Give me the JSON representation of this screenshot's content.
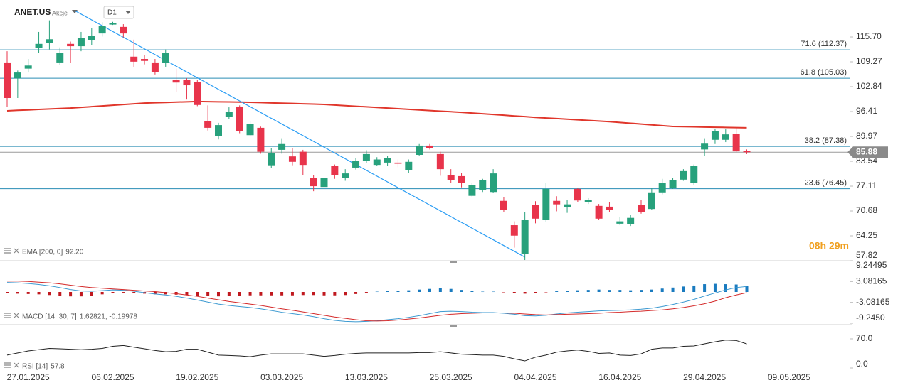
{
  "header": {
    "symbol": "ANET.US",
    "asset_class": "Akcje",
    "timeframe": "D1"
  },
  "chart_data": [
    {
      "type": "candlestick",
      "categories": [
        null,
        null,
        "27.01.2025",
        null,
        null,
        null,
        null,
        null,
        null,
        null,
        "06.02.2025",
        null,
        null,
        null,
        null,
        null,
        null,
        null,
        "19.02.2025",
        null,
        null,
        null,
        null,
        null,
        null,
        null,
        "03.03.2025",
        null,
        null,
        null,
        null,
        null,
        null,
        null,
        "13.03.2025",
        null,
        null,
        null,
        null,
        null,
        null,
        null,
        "25.03.2025",
        null,
        null,
        null,
        null,
        null,
        null,
        null,
        "04.04.2025",
        null,
        null,
        null,
        null,
        null,
        null,
        null,
        "16.04.2025",
        null,
        null,
        null,
        null,
        null,
        null,
        null,
        "29.04.2025",
        null,
        null,
        null,
        null,
        null,
        null,
        null,
        "09.05.2025"
      ],
      "open": [
        109.1,
        105,
        107.5,
        112.9,
        114.2,
        109.1,
        113.9,
        113.3,
        114.8,
        116.6,
        118.9,
        118.3,
        110.6,
        110,
        109.1,
        109,
        104.5,
        104.5,
        104.1,
        94,
        90,
        95.1,
        97.7,
        90.3,
        92.2,
        82.5,
        86.5,
        84.8,
        86,
        79.3,
        76.9,
        82.3,
        79.3,
        81.9,
        83.7,
        82.6,
        83.2,
        83.2,
        81.2,
        85.2,
        87.6,
        85.4,
        80,
        79.7,
        74.6,
        76.2,
        75.6,
        73.3,
        67,
        59.5,
        72.3,
        68.3,
        73.3,
        71.6,
        76.4,
        72.9,
        72,
        71.8,
        67.4,
        67.2,
        72.3,
        71.2,
        75.5,
        76.7,
        78.8,
        77.9,
        86.6,
        89.1,
        89.1,
        90.7,
        86.3,
        null,
        null,
        null,
        null
      ],
      "high": [
        112,
        107,
        110,
        117,
        120,
        113,
        114.5,
        117,
        118,
        119.5,
        119.6,
        119,
        115,
        111,
        110,
        112.5,
        107.5,
        105,
        104.5,
        98,
        93.5,
        97.5,
        98,
        94,
        92.5,
        87,
        89.5,
        87,
        86.5,
        80,
        80.5,
        82.7,
        81.5,
        84.3,
        86.4,
        84.6,
        85,
        84,
        84,
        88,
        88,
        86,
        81.5,
        80.5,
        78,
        79,
        81.5,
        74.3,
        68,
        70.5,
        73.2,
        78,
        74.5,
        73.5,
        76.6,
        74,
        72.5,
        73,
        69.2,
        69.6,
        73.5,
        76.6,
        79,
        79.2,
        81.5,
        82.7,
        89.5,
        92,
        91.8,
        92.3,
        86.6,
        null,
        null,
        null,
        null
      ],
      "low": [
        97.7,
        99.9,
        106.5,
        111.5,
        112.5,
        108.5,
        109,
        112,
        113.5,
        115.8,
        118.8,
        115.6,
        108,
        108.6,
        106,
        108,
        101.5,
        99.5,
        97.8,
        91.5,
        89.2,
        94.5,
        90.8,
        90,
        85.5,
        81.8,
        85.5,
        82.5,
        80,
        75.8,
        76.5,
        79,
        78.5,
        81.4,
        83,
        82.3,
        82.4,
        82,
        80.5,
        85,
        86.6,
        79.8,
        78,
        76.8,
        74.4,
        75.6,
        75.3,
        70.5,
        61.2,
        58,
        67.5,
        67.9,
        70.6,
        70.2,
        73,
        72.5,
        68.4,
        70.5,
        67,
        66.8,
        70,
        71,
        75,
        76.4,
        78.5,
        77.5,
        85,
        88,
        88.5,
        85.9,
        85.4,
        null,
        null,
        null,
        null
      ],
      "close": [
        99.9,
        106.5,
        108.3,
        113.9,
        115.1,
        111.5,
        113.3,
        115.5,
        116,
        118.5,
        119.3,
        116.6,
        109.3,
        109.5,
        106.7,
        111.5,
        103.9,
        103.2,
        98.1,
        92.2,
        92.9,
        96.4,
        91.3,
        93.1,
        86,
        85.6,
        88,
        83.4,
        82.6,
        77.1,
        79.3,
        79.9,
        80.4,
        83.7,
        85.4,
        84,
        84.3,
        82.9,
        83.4,
        87.6,
        87,
        81.5,
        78.6,
        78,
        77.3,
        78.6,
        80.4,
        70.9,
        64.3,
        68.3,
        68.7,
        76.4,
        72.4,
        72.4,
        73.4,
        73.5,
        68.7,
        70.9,
        68,
        68.9,
        70.5,
        75.5,
        78,
        78.6,
        81,
        82.3,
        88.1,
        91.3,
        90.5,
        86.1,
        85.88,
        null,
        null,
        null,
        null
      ],
      "up_color": "#27a17c",
      "down_color": "#e8344b",
      "ylim": [
        57.82,
        124.34
      ],
      "yticks": [
        {
          "value": 115.7,
          "label": "115.70"
        },
        109.27,
        102.84,
        96.41,
        89.97,
        83.54,
        77.11,
        70.68,
        64.25,
        57.82
      ],
      "overlays": [
        {
          "legend": "EMA [200, 0]",
          "legend_value": "92.20",
          "color": "#e0362b",
          "values": [
            96.6,
            96.72,
            96.83,
            96.95,
            97.07,
            97.18,
            97.3,
            97.49,
            97.67,
            97.86,
            98.04,
            98.23,
            98.41,
            98.6,
            98.68,
            98.76,
            98.84,
            98.92,
            99.0,
            98.96,
            98.92,
            98.88,
            98.84,
            98.8,
            98.72,
            98.64,
            98.56,
            98.49,
            98.41,
            98.33,
            98.25,
            98.09,
            97.93,
            97.77,
            97.62,
            97.46,
            97.3,
            97.14,
            96.99,
            96.83,
            96.67,
            96.51,
            96.36,
            96.2,
            96.01,
            95.83,
            95.64,
            95.46,
            95.27,
            95.09,
            94.9,
            94.74,
            94.59,
            94.43,
            94.27,
            94.11,
            93.96,
            93.8,
            93.59,
            93.38,
            93.18,
            92.97,
            92.76,
            92.55,
            92.5,
            92.45,
            92.4,
            92.35,
            92.3,
            92.25,
            92.2,
            null,
            null,
            null,
            null
          ]
        }
      ],
      "levels": [
        {
          "label": "71.6 (112.37)",
          "value": 112.37
        },
        {
          "label": "61.8 (105.03)",
          "value": 105.03
        },
        {
          "label": "38.2 (87.38)",
          "value": 87.38
        },
        {
          "label": "23.6 (76.45)",
          "value": 76.45
        }
      ],
      "level_color": "#1b8ed8",
      "current_price": 85.88,
      "trendline": {
        "x": [
          6.4,
          49.0
        ],
        "values": [
          122.5,
          58.75
        ],
        "color": "#2a9df4"
      },
      "countdown": "08h 29m"
    },
    {
      "type": "macd",
      "legend": "MACD [14, 30, 7]",
      "legend_value": "1.62821, -0.19978",
      "ylim": [
        -9.245,
        9.24495
      ],
      "yticks": [
        9.24495,
        3.08165,
        -3.08165,
        {
          "value": -9.245,
          "label": "-9.2450"
        }
      ],
      "series": [
        {
          "color": "#3d9ad1",
          "values": [
            2.8,
            2.7,
            2.5,
            2.2,
            1.8,
            1.3,
            0.7,
            0.3,
            0.2,
            0.4,
            0.6,
            0.5,
            0.2,
            -0.2,
            -0.6,
            -0.9,
            -1.3,
            -1.8,
            -2.4,
            -3.0,
            -3.6,
            -4.0,
            -4.3,
            -4.6,
            -5.0,
            -5.5,
            -6.0,
            -6.4,
            -6.8,
            -7.3,
            -7.9,
            -8.4,
            -8.7,
            -8.8,
            -8.7,
            -8.5,
            -8.2,
            -7.9,
            -7.5,
            -7.0,
            -6.4,
            -5.8,
            -5.7,
            -5.8,
            -6.0,
            -6.1,
            -6.1,
            -6.3,
            -6.6,
            -7.0,
            -7.1,
            -6.9,
            -6.5,
            -6.2,
            -6.0,
            -5.8,
            -5.6,
            -5.5,
            -5.4,
            -5.3,
            -5.1,
            -4.8,
            -4.3,
            -3.7,
            -3.0,
            -2.2,
            -1.2,
            -0.3,
            0.6,
            1.3,
            1.63,
            null,
            null,
            null,
            null
          ]
        },
        {
          "color": "#d42a2a",
          "values": [
            3.2,
            3.2,
            3.1,
            2.9,
            2.7,
            2.4,
            2.0,
            1.6,
            1.3,
            1.1,
            0.9,
            0.7,
            0.5,
            0.3,
            0.1,
            -0.2,
            -0.5,
            -0.9,
            -1.3,
            -1.8,
            -2.3,
            -2.8,
            -3.2,
            -3.6,
            -4.0,
            -4.5,
            -5.0,
            -5.4,
            -5.9,
            -6.4,
            -6.9,
            -7.4,
            -7.8,
            -8.2,
            -8.5,
            -8.6,
            -8.5,
            -8.3,
            -8.0,
            -7.7,
            -7.3,
            -6.9,
            -6.6,
            -6.4,
            -6.3,
            -6.2,
            -6.2,
            -6.2,
            -6.3,
            -6.5,
            -6.7,
            -6.8,
            -6.7,
            -6.6,
            -6.5,
            -6.4,
            -6.3,
            -6.1,
            -6.0,
            -5.8,
            -5.7,
            -5.5,
            -5.3,
            -5.0,
            -4.6,
            -4.1,
            -3.5,
            -2.7,
            -1.7,
            -0.9,
            -0.2,
            null,
            null,
            null,
            null
          ]
        }
      ],
      "histogram": {
        "up_color": "#1a7bbf",
        "down_color": "#c0191f",
        "values": [
          -0.4,
          -0.5,
          -0.6,
          -0.7,
          -0.9,
          -1.1,
          -1.3,
          -1.3,
          -1.1,
          -0.7,
          -0.3,
          -0.2,
          -0.3,
          -0.5,
          -0.7,
          -0.7,
          -0.8,
          -0.9,
          -1.1,
          -1.2,
          -1.3,
          -1.2,
          -1.1,
          -1.0,
          -1.0,
          -1.0,
          -1.0,
          -1.0,
          -0.9,
          -0.9,
          -1.0,
          -1.0,
          -0.9,
          -0.6,
          -0.2,
          0.1,
          0.3,
          0.4,
          0.5,
          0.7,
          0.9,
          1.1,
          0.9,
          0.6,
          0.3,
          0.1,
          0.1,
          -0.1,
          -0.3,
          -0.5,
          -0.4,
          -0.1,
          0.2,
          0.4,
          0.5,
          0.6,
          0.7,
          0.6,
          0.6,
          0.5,
          0.6,
          0.7,
          1.0,
          1.3,
          1.6,
          1.9,
          2.3,
          2.4,
          2.3,
          2.2,
          1.83,
          null,
          null,
          null,
          null
        ]
      }
    },
    {
      "type": "line",
      "legend": "RSI [14]",
      "legend_value": "57.8",
      "ylim": [
        -3.4,
        104.1
      ],
      "yticks": [
        {
          "value": 70,
          "label": "70.0"
        },
        {
          "value": 0,
          "label": "0.0"
        }
      ],
      "series": [
        {
          "color": "#222222",
          "values": [
            31,
            36,
            41,
            44,
            47,
            46,
            45,
            44,
            45,
            47,
            52,
            54,
            50,
            46,
            42,
            39,
            40,
            45,
            45,
            38,
            31,
            30,
            29,
            27,
            31,
            34,
            34,
            34,
            34,
            31,
            28,
            30,
            33,
            35,
            36,
            36,
            36,
            36,
            36,
            37,
            37,
            39,
            36,
            33,
            32,
            31,
            31,
            28,
            22,
            17,
            26,
            31,
            38,
            41,
            43,
            40,
            35,
            36,
            31,
            30,
            34,
            45,
            48,
            48,
            52,
            53,
            58,
            63,
            67,
            66,
            57.8,
            null,
            null,
            null,
            null
          ]
        }
      ]
    }
  ]
}
